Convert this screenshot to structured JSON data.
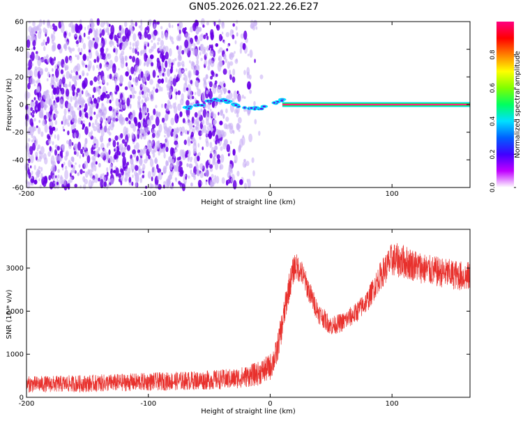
{
  "title": "GN05.2026.021.22.26.E27",
  "colors": {
    "trace": "#e8302c",
    "scatter_primary": "#6a00e6",
    "scatter_light": "#c9b0f5",
    "ridge_outer": "#00e0ff",
    "ridge_mid": "#00ff40",
    "ridge_inner": "#ff2080"
  },
  "chart_data": [
    {
      "type": "heatmap",
      "xlabel": "Height of straight line (km)",
      "ylabel": "Frequency (Hz)",
      "xlim": [
        -200,
        164
      ],
      "ylim": [
        -60,
        60
      ],
      "x_ticks": [
        "-200",
        "-100",
        "0",
        "100"
      ],
      "x_tick_values": [
        -200,
        -100,
        0,
        100
      ],
      "y_ticks": [
        "-60",
        "-40",
        "-20",
        "0",
        "20",
        "40",
        "60"
      ],
      "y_tick_values": [
        -60,
        -40,
        -20,
        0,
        20,
        40,
        60
      ],
      "colorbar": {
        "label": "Normalized spectral amplitude",
        "range": [
          0,
          1
        ],
        "ticks": [
          "0.0",
          "0.2",
          "0.4",
          "0.6",
          "0.8"
        ],
        "tick_values": [
          0.0,
          0.2,
          0.4,
          0.6,
          0.8
        ],
        "colormap": [
          "#ffffff",
          "#c000ff",
          "#4000ff",
          "#0060ff",
          "#00e0ff",
          "#00ff60",
          "#80ff00",
          "#ffff00",
          "#ff8000",
          "#ff0000",
          "#ff0080"
        ]
      },
      "noise_region_x": [
        -200,
        -20
      ],
      "ridge": {
        "x_start": -70,
        "x_end": 164,
        "frequency": 0,
        "amplitude_start": 0.3,
        "amplitude_end": 0.95
      }
    },
    {
      "type": "line",
      "xlabel": "Height of straight line (km)",
      "ylabel": "SNR (10 * v/v)",
      "xlim": [
        -200,
        164
      ],
      "ylim": [
        0,
        3900
      ],
      "x_ticks": [
        "-200",
        "-100",
        "0",
        "100"
      ],
      "x_tick_values": [
        -200,
        -100,
        0,
        100
      ],
      "y_ticks": [
        "0",
        "1000",
        "2000",
        "3000"
      ],
      "y_tick_values": [
        0,
        1000,
        2000,
        3000
      ],
      "series": [
        {
          "x": [
            -200,
            -150,
            -100,
            -50,
            -30,
            -20,
            -10,
            0,
            5,
            10,
            15,
            20,
            25,
            30,
            35,
            40,
            45,
            50,
            55,
            60,
            70,
            80,
            90,
            100,
            110,
            120,
            130,
            140,
            150,
            160,
            164
          ],
          "center": [
            300,
            320,
            360,
            400,
            430,
            480,
            550,
            700,
            1000,
            1700,
            2500,
            3050,
            2950,
            2600,
            2250,
            1950,
            1800,
            1650,
            1700,
            1750,
            1950,
            2250,
            2800,
            3200,
            3150,
            3050,
            2950,
            2900,
            2850,
            2800,
            2800
          ],
          "spread": [
            380,
            400,
            420,
            450,
            480,
            500,
            560,
            620,
            660,
            700,
            700,
            650,
            600,
            560,
            520,
            480,
            460,
            440,
            440,
            450,
            480,
            520,
            650,
            800,
            800,
            750,
            720,
            700,
            700,
            700,
            700
          ]
        }
      ]
    }
  ]
}
